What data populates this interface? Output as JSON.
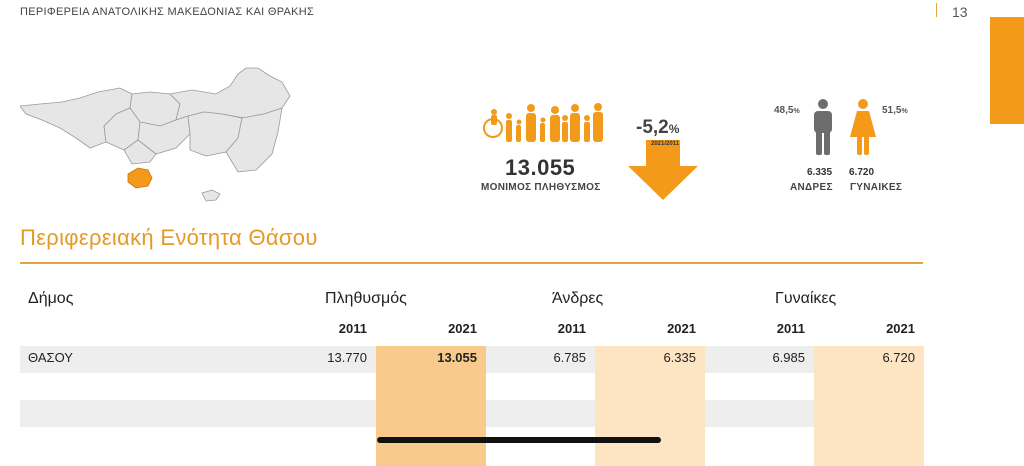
{
  "header": {
    "region": "ΠΕΡΙΦΕΡΕΙΑ ΑΝΑΤΟΛΙΚΗΣ ΜΑΚΕΔΟΝΙΑΣ ΚΑΙ ΘΡΑΚΗΣ",
    "page_number": "13"
  },
  "colors": {
    "accent": "#f39a1a",
    "highlight_dark": "#f8cb8d",
    "highlight_light": "#fde5c4"
  },
  "population": {
    "value": "13.055",
    "label": "ΜΟΝΙΜΟΣ ΠΛΗΘΥΣΜΟΣ",
    "change": "-5,2",
    "change_unit": "%",
    "period": "2021/2011"
  },
  "gender": {
    "men_pct": "48,5",
    "women_pct": "51,5",
    "pct_unit": "%",
    "men_count": "6.335",
    "women_count": "6.720",
    "men_label": "ΑΝΔΡΕΣ",
    "women_label": "ΓΥΝΑΙΚΕΣ"
  },
  "section_title": "Περιφερειακή Ενότητα Θάσου",
  "table": {
    "headers": {
      "municipality": "Δήμος",
      "population": "Πληθυσμός",
      "men": "Άνδρες",
      "women": "Γυναίκες"
    },
    "years": [
      "2011",
      "2021",
      "2011",
      "2021",
      "2011",
      "2021"
    ],
    "rows": [
      {
        "name": "ΘΑΣΟΥ",
        "pop_2011": "13.770",
        "pop_2021": "13.055",
        "men_2011": "6.785",
        "men_2021": "6.335",
        "women_2011": "6.985",
        "women_2021": "6.720"
      }
    ]
  }
}
